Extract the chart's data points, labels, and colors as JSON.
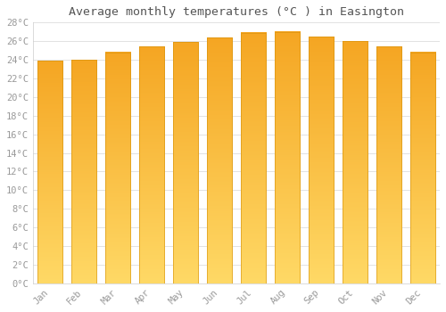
{
  "title": "Average monthly temperatures (°C ) in Easington",
  "months": [
    "Jan",
    "Feb",
    "Mar",
    "Apr",
    "May",
    "Jun",
    "Jul",
    "Aug",
    "Sep",
    "Oct",
    "Nov",
    "Dec"
  ],
  "values": [
    23.9,
    24.0,
    24.8,
    25.4,
    25.9,
    26.4,
    26.9,
    27.0,
    26.5,
    26.0,
    25.4,
    24.8
  ],
  "ylim": [
    0,
    28
  ],
  "yticks": [
    0,
    2,
    4,
    6,
    8,
    10,
    12,
    14,
    16,
    18,
    20,
    22,
    24,
    26,
    28
  ],
  "bar_color_top": "#F5A623",
  "bar_color_bottom": "#FFD966",
  "bar_edge_color": "#D4900A",
  "background_color": "#FFFFFF",
  "grid_color": "#DDDDDD",
  "title_fontsize": 9.5,
  "tick_fontsize": 7.5,
  "font_color": "#999999"
}
